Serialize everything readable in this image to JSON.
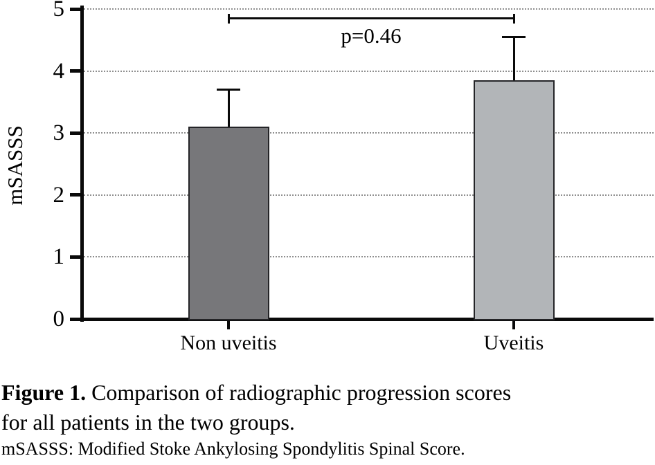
{
  "chart_data": {
    "type": "bar",
    "title": "",
    "ylabel": "mSASSS",
    "xlabel": "",
    "categories": [
      "Non uveitis",
      "Uveitis"
    ],
    "series": [
      {
        "name": "mSASSS mean",
        "values": [
          3.1,
          3.85
        ],
        "errors_plus": [
          0.6,
          0.7
        ]
      }
    ],
    "ylim": [
      0,
      5
    ],
    "yticks": [
      0,
      1,
      2,
      3,
      4,
      5
    ],
    "grid": "horizontal-dotted",
    "legend": "none",
    "bar_colors": [
      "#77777a",
      "#b2b5b8"
    ],
    "bar_border_color": "#242427",
    "annotation": {
      "label": "p=0.46",
      "bracket_from": "Non uveitis",
      "bracket_to": "Uveitis",
      "bracket_y": 4.87
    }
  },
  "caption": {
    "line1_bold": "Figure 1.",
    "line1_rest": " Comparison of radiographic progression scores",
    "line2": "for all patients in the two groups.",
    "footnote": "mSASSS: Modified Stoke Ankylosing Spondylitis Spinal Score."
  }
}
